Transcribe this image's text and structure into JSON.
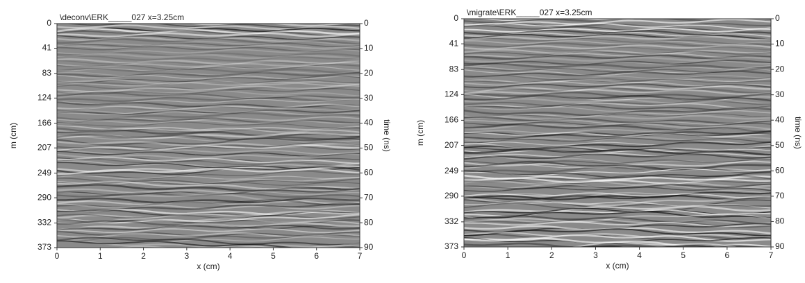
{
  "chart_data": [
    {
      "type": "radargram",
      "title": "\\deconv\\ERK_____027   x=3.25cm",
      "xlabel": "x (cm)",
      "ylabel": "m (cm)",
      "y2label": "time (ns)",
      "xlim": [
        0,
        7
      ],
      "xticks": [
        0,
        1,
        2,
        3,
        4,
        5,
        6,
        7
      ],
      "ylim": [
        373,
        0
      ],
      "yticks": [
        0,
        41,
        83,
        124,
        166,
        207,
        249,
        290,
        332,
        373
      ],
      "y2lim": [
        90,
        0
      ],
      "y2ticks": [
        0,
        10,
        20,
        30,
        40,
        50,
        60,
        70,
        80,
        90
      ]
    },
    {
      "type": "radargram",
      "title": "\\migrate\\ERK_____027   x=3.25cm",
      "xlabel": "x (cm)",
      "ylabel": "m (cm)",
      "y2label": "time (ns)",
      "xlim": [
        0,
        7
      ],
      "xticks": [
        0,
        1,
        2,
        3,
        4,
        5,
        6,
        7
      ],
      "ylim": [
        373,
        0
      ],
      "yticks": [
        0,
        41,
        83,
        124,
        166,
        207,
        249,
        290,
        332,
        373
      ],
      "y2lim": [
        90,
        0
      ],
      "y2ticks": [
        0,
        10,
        20,
        30,
        40,
        50,
        60,
        70,
        80,
        90
      ]
    }
  ]
}
